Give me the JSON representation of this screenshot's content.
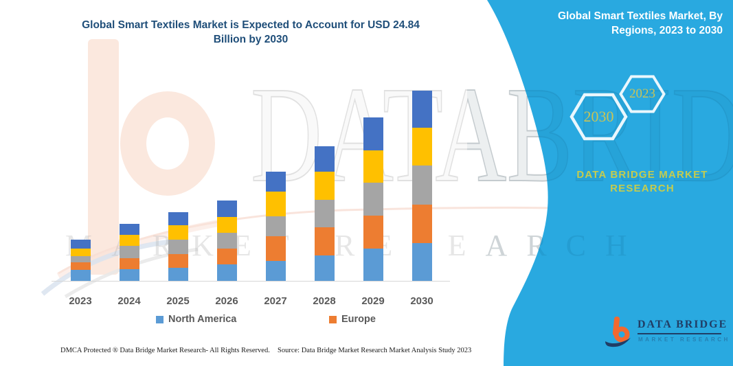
{
  "header": {
    "title_line1": "Global Smart Textiles Market is Expected to Account for USD 24.84",
    "title_line2": "Billion by 2030"
  },
  "chart_data": {
    "type": "bar",
    "stacked": true,
    "title": "Global Smart Textiles Market is Expected to Account for USD 24.84 Billion by 2030",
    "unit": "USD Billion",
    "categories": [
      "2023",
      "2024",
      "2025",
      "2026",
      "2027",
      "2028",
      "2029",
      "2030"
    ],
    "series": [
      {
        "name": "North America",
        "color": "#5B9BD5",
        "values": [
          1.4,
          1.5,
          1.7,
          2.2,
          2.6,
          3.3,
          4.2,
          4.95
        ]
      },
      {
        "name": "Europe",
        "color": "#ED7D31",
        "values": [
          1.0,
          1.4,
          1.8,
          2.1,
          3.2,
          3.7,
          4.3,
          5.04
        ]
      },
      {
        "name": "",
        "color": "#A5A5A5",
        "values": [
          0.8,
          1.6,
          1.9,
          2.1,
          2.6,
          3.6,
          4.3,
          5.1
        ]
      },
      {
        "name": "",
        "color": "#FFC000",
        "values": [
          1.0,
          1.4,
          1.9,
          2.1,
          3.2,
          3.7,
          4.2,
          4.92
        ]
      },
      {
        "name": "",
        "color": "#4472C4",
        "values": [
          1.2,
          1.4,
          1.7,
          2.2,
          2.6,
          3.3,
          4.3,
          4.83
        ]
      }
    ],
    "estimated_totals": [
      5.4,
      7.3,
      9.0,
      10.7,
      14.2,
      17.6,
      21.3,
      24.84
    ],
    "ylim": [
      0,
      25
    ],
    "grid": false,
    "legend_position": "bottom",
    "legend_visible_entries": [
      "North America",
      "Europe"
    ]
  },
  "legend": {
    "items": [
      {
        "label": "North America",
        "color": "#5B9BD5"
      },
      {
        "label": "Europe",
        "color": "#ED7D31"
      }
    ]
  },
  "side_panel": {
    "heading_line1": "Global Smart Textiles Market, By",
    "heading_line2": "Regions, 2023 to 2030",
    "hexagons": [
      {
        "label": "2030"
      },
      {
        "label": "2023"
      }
    ],
    "brand_line1": "DATA BRIDGE MARKET",
    "brand_line2": "RESEARCH",
    "logo": {
      "name_text": "DATA BRIDGE",
      "sub_text": "MARKET RESEARCH"
    },
    "accent_color": "#29A9E0",
    "hex_text_color": "#CBC455",
    "brand_text_color": "#C4CC4F",
    "logo_navy": "#203E66",
    "logo_orange": "#F2692F"
  },
  "watermark": {
    "text_large": "DATABRIDGE",
    "text_row2": "MARKET RESEARCH"
  },
  "footer": {
    "dmca": "DMCA Protected ® Data Bridge Market Research-  All Rights Reserved.",
    "source": "Source: Data Bridge Market Research  Market Analysis Study 2023"
  }
}
